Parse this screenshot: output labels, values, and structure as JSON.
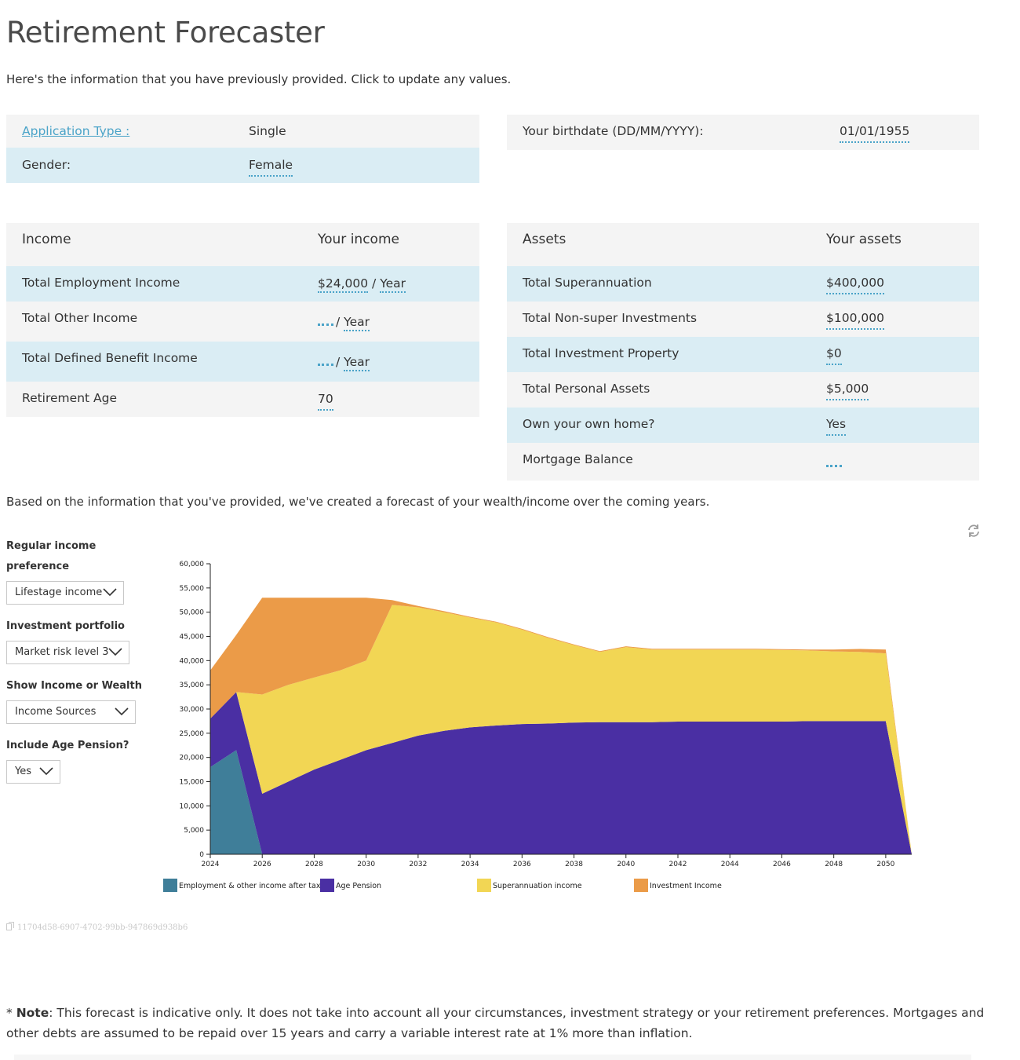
{
  "title": "Retirement Forecaster",
  "intro": "Here's the information that you have previously provided. Click to update any values.",
  "profile": {
    "application_type_label": "Application Type :",
    "application_type_value": "Single",
    "gender_label": "Gender:",
    "gender_value": "Female",
    "birthdate_label": "Your birthdate (DD/MM/YYYY):",
    "birthdate_value": "01/01/1955"
  },
  "income": {
    "header_label": "Income",
    "header_value": "Your income",
    "rows": [
      {
        "label": "Total Employment Income",
        "amount": "$24,000",
        "sep": " / ",
        "period": "Year"
      },
      {
        "label": "Total Other Income",
        "amount": "",
        "sep": "/ ",
        "period": "Year"
      },
      {
        "label": "Total Defined Benefit Income",
        "amount": "",
        "sep": "/ ",
        "period": "Year"
      },
      {
        "label": "Retirement Age",
        "amount": "70"
      }
    ]
  },
  "assets": {
    "header_label": "Assets",
    "header_value": "Your assets",
    "rows": [
      {
        "label": "Total Superannuation",
        "value": "$400,000"
      },
      {
        "label": "Total Non-super Investments",
        "value": "$100,000"
      },
      {
        "label": "Total Investment Property",
        "value": "$0"
      },
      {
        "label": "Total Personal Assets",
        "value": "$5,000"
      },
      {
        "label": "Own your own home?",
        "value": "Yes"
      },
      {
        "label": "Mortgage Balance",
        "value": ""
      }
    ]
  },
  "forecast_text": "Based on the information that you've provided, we've created a forecast of your wealth/income over the coming years.",
  "controls": {
    "regular_income_label_1": "Regular income",
    "regular_income_label_2": "preference",
    "regular_income_value": "Lifestage income",
    "portfolio_label": "Investment portfolio",
    "portfolio_value": "Market risk level 3",
    "show_label": "Show Income or Wealth",
    "show_value": "Income Sources",
    "pension_label": "Include Age Pension?",
    "pension_value": "Yes"
  },
  "icons": {
    "refresh": "refresh-icon",
    "chevron": "chevron-down-icon",
    "doc": "document-icon"
  },
  "chart_data": {
    "type": "area",
    "stacked": true,
    "x": [
      2024,
      2025,
      2026,
      2027,
      2028,
      2029,
      2030,
      2031,
      2032,
      2033,
      2034,
      2035,
      2036,
      2037,
      2038,
      2039,
      2040,
      2041,
      2042,
      2043,
      2044,
      2045,
      2046,
      2047,
      2048,
      2049,
      2050,
      2051
    ],
    "xticks": [
      2024,
      2026,
      2028,
      2030,
      2032,
      2034,
      2036,
      2038,
      2040,
      2042,
      2044,
      2046,
      2048,
      2050
    ],
    "ylim": [
      0,
      60000
    ],
    "yticks": [
      0,
      5000,
      10000,
      15000,
      20000,
      25000,
      30000,
      35000,
      40000,
      45000,
      50000,
      55000,
      60000
    ],
    "ytick_labels": [
      "0",
      "5,000",
      "10,000",
      "15,000",
      "20,000",
      "25,000",
      "30,000",
      "35,000",
      "40,000",
      "45,000",
      "50,000",
      "55,000",
      "60,000"
    ],
    "series": [
      {
        "name": "Employment & other income after tax",
        "color": "#3f7e99",
        "values": [
          18000,
          21500,
          0,
          0,
          0,
          0,
          0,
          0,
          0,
          0,
          0,
          0,
          0,
          0,
          0,
          0,
          0,
          0,
          0,
          0,
          0,
          0,
          0,
          0,
          0,
          0,
          0,
          0
        ]
      },
      {
        "name": "Age Pension",
        "color": "#4a2fa3",
        "values": [
          10000,
          12000,
          12500,
          15000,
          17500,
          19500,
          21500,
          23000,
          24500,
          25500,
          26200,
          26600,
          26900,
          27000,
          27200,
          27300,
          27300,
          27300,
          27400,
          27400,
          27400,
          27400,
          27400,
          27500,
          27500,
          27500,
          27500,
          0
        ]
      },
      {
        "name": "Superannuation income",
        "color": "#f2d654",
        "values": [
          0,
          0,
          20500,
          20000,
          19000,
          18500,
          18500,
          28500,
          26500,
          24500,
          22700,
          21300,
          19500,
          17700,
          16000,
          14500,
          15500,
          15000,
          14900,
          14900,
          14900,
          14900,
          14800,
          14600,
          14400,
          14300,
          14000,
          0
        ]
      },
      {
        "name": "Investment Income",
        "color": "#eb9b48",
        "values": [
          10000,
          11800,
          20000,
          18000,
          16500,
          15000,
          13000,
          1000,
          300,
          200,
          150,
          150,
          150,
          150,
          150,
          150,
          150,
          150,
          150,
          150,
          150,
          150,
          150,
          200,
          400,
          600,
          800,
          0
        ]
      }
    ]
  },
  "uuid": "11704d58-6907-4702-99bb-947869d938b6",
  "note": {
    "prefix": "* ",
    "bold": "Note",
    "text": ": This forecast is indicative only. It does not take into account all your circumstances, investment strategy or your retirement preferences. Mortgages and other debts are assumed to be repaid over 15 years and carry a variable interest rate at 1% more than inflation."
  }
}
